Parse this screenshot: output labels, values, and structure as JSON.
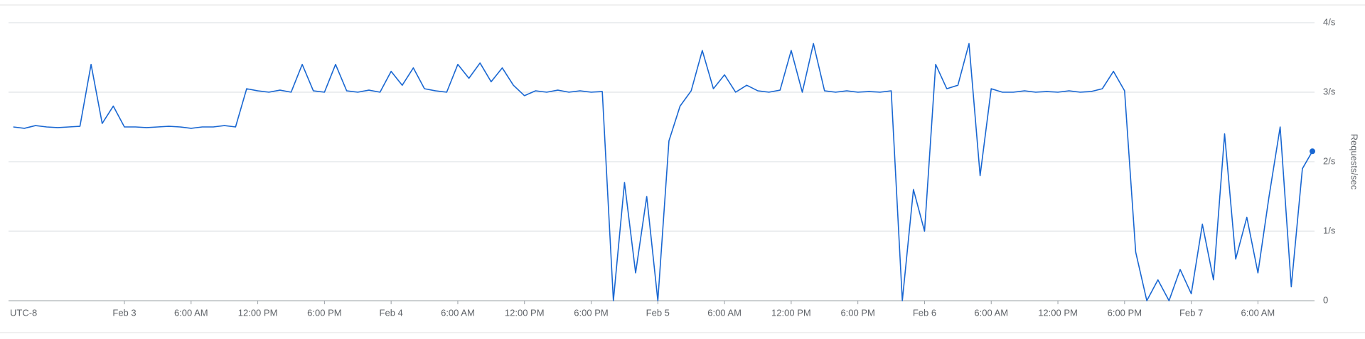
{
  "chart_data": {
    "type": "line",
    "y_axis_label": "Requests/sec",
    "timezone_label": "UTC-8",
    "x": [
      -10,
      -9,
      -8,
      -7,
      -6,
      -5,
      -4,
      -3,
      -2,
      -1,
      0,
      1,
      2,
      3,
      4,
      5,
      6,
      7,
      8,
      9,
      10,
      11,
      12,
      13,
      14,
      15,
      16,
      17,
      18,
      19,
      20,
      21,
      22,
      23,
      24,
      25,
      26,
      27,
      28,
      29,
      30,
      31,
      32,
      33,
      34,
      35,
      36,
      37,
      38,
      39,
      40,
      41,
      42,
      43,
      44,
      45,
      46,
      47,
      48,
      49,
      50,
      51,
      52,
      53,
      54,
      55,
      56,
      57,
      58,
      59,
      60,
      61,
      62,
      63,
      64,
      65,
      66,
      67,
      68,
      69,
      70,
      71,
      72,
      73,
      74,
      75,
      76,
      77,
      78,
      79,
      80,
      81,
      82,
      83,
      84,
      85,
      86,
      87,
      88,
      89,
      90,
      91,
      92,
      93,
      94,
      95,
      96,
      97,
      98,
      99,
      100,
      101,
      102,
      103,
      104,
      105,
      106,
      106.9
    ],
    "series": [
      {
        "name": "Requests/sec",
        "color": "#1967d2",
        "values": [
          2.5,
          2.48,
          2.52,
          2.5,
          2.49,
          2.5,
          2.51,
          3.4,
          2.55,
          2.8,
          2.5,
          2.5,
          2.49,
          2.5,
          2.51,
          2.5,
          2.48,
          2.5,
          2.5,
          2.52,
          2.5,
          3.05,
          3.02,
          3.0,
          3.03,
          3.0,
          3.4,
          3.02,
          3.0,
          3.4,
          3.02,
          3.0,
          3.03,
          3.0,
          3.3,
          3.1,
          3.35,
          3.05,
          3.02,
          3.0,
          3.4,
          3.2,
          3.42,
          3.15,
          3.35,
          3.1,
          2.95,
          3.02,
          3.0,
          3.03,
          3.0,
          3.02,
          3.0,
          3.01,
          0,
          1.7,
          0.4,
          1.5,
          0,
          2.3,
          2.8,
          3.02,
          3.6,
          3.05,
          3.25,
          3.0,
          3.1,
          3.02,
          3.0,
          3.03,
          3.6,
          3.0,
          3.7,
          3.02,
          3.0,
          3.02,
          3.0,
          3.01,
          3.0,
          3.02,
          0,
          1.6,
          1.0,
          3.4,
          3.05,
          3.1,
          3.7,
          1.8,
          3.05,
          3.0,
          3.0,
          3.02,
          3.0,
          3.01,
          3.0,
          3.02,
          3.0,
          3.01,
          3.05,
          3.3,
          3.02,
          0.7,
          0,
          0.3,
          0,
          0.45,
          0.1,
          1.1,
          0.3,
          2.4,
          0.6,
          1.2,
          0.4,
          1.5,
          2.5,
          0.2,
          1.9,
          2.15
        ]
      }
    ],
    "xlim": [
      -10.3,
      106.9
    ],
    "xticks": [
      {
        "value": 0,
        "label": "Feb 3"
      },
      {
        "value": 6,
        "label": "6:00 AM"
      },
      {
        "value": 12,
        "label": "12:00 PM"
      },
      {
        "value": 18,
        "label": "6:00 PM"
      },
      {
        "value": 24,
        "label": "Feb 4"
      },
      {
        "value": 30,
        "label": "6:00 AM"
      },
      {
        "value": 36,
        "label": "12:00 PM"
      },
      {
        "value": 42,
        "label": "6:00 PM"
      },
      {
        "value": 48,
        "label": "Feb 5"
      },
      {
        "value": 54,
        "label": "6:00 AM"
      },
      {
        "value": 60,
        "label": "12:00 PM"
      },
      {
        "value": 66,
        "label": "6:00 PM"
      },
      {
        "value": 72,
        "label": "Feb 6"
      },
      {
        "value": 78,
        "label": "6:00 AM"
      },
      {
        "value": 84,
        "label": "12:00 PM"
      },
      {
        "value": 90,
        "label": "6:00 PM"
      },
      {
        "value": 96,
        "label": "Feb 7"
      },
      {
        "value": 102,
        "label": "6:00 AM"
      }
    ],
    "ylim": [
      0,
      4
    ],
    "yticks": [
      0,
      {
        "value": 1,
        "label": "1/s"
      },
      {
        "value": 2,
        "label": "2/s"
      },
      {
        "value": 3,
        "label": "3/s"
      },
      {
        "value": 4,
        "label": "4/s"
      }
    ],
    "grid": true
  }
}
